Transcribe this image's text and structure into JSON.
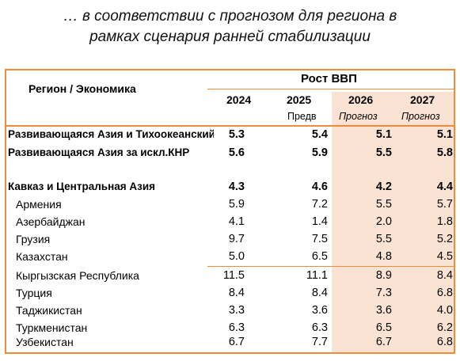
{
  "title": {
    "line1": "… в соответствии с прогнозом для региона в",
    "line2": "рамках сценария ранней стабилизации"
  },
  "table": {
    "region_header": "Регион / Экономика",
    "gdp_header": "Рост ВВП",
    "years": [
      "2024",
      "2025",
      "2026",
      "2027"
    ],
    "year_subs": [
      "",
      "Предв",
      "Прогноз",
      "Прогноз"
    ],
    "rows": [
      {
        "name": "Развивающаяся Азия и Тихоокеанский регион",
        "values": [
          "5.3",
          "5.4",
          "5.1",
          "5.1"
        ],
        "bold": true
      },
      {
        "name": "Развивающаяся Азия за искл.КНР",
        "values": [
          "5.6",
          "5.9",
          "5.5",
          "5.8"
        ],
        "bold": true
      },
      {
        "name": "Кавказ и Центральная Азия",
        "values": [
          "4.3",
          "4.6",
          "4.2",
          "4.4"
        ],
        "bold": true
      },
      {
        "name": "Армения",
        "values": [
          "5.9",
          "7.2",
          "5.5",
          "5.7"
        ],
        "bold": false
      },
      {
        "name": "Азербайджан",
        "values": [
          "4.1",
          "1.4",
          "2.0",
          "1.8"
        ],
        "bold": false
      },
      {
        "name": "Грузия",
        "values": [
          "9.7",
          "7.5",
          "5.5",
          "5.2"
        ],
        "bold": false
      },
      {
        "name": "Казахстан",
        "values": [
          "5.0",
          "6.5",
          "4.8",
          "4.5"
        ],
        "bold": false
      },
      {
        "name": "Кыргызская Республика",
        "values": [
          "11.5",
          "11.1",
          "8.9",
          "8.4"
        ],
        "bold": false
      },
      {
        "name": "Турция",
        "values": [
          "8.4",
          "8.4",
          "7.3",
          "6.8"
        ],
        "bold": false
      },
      {
        "name": "Таджикистан",
        "values": [
          "3.3",
          "3.6",
          "3.6",
          "4.0"
        ],
        "bold": false
      },
      {
        "name": "Туркменистан",
        "values": [
          "6.3",
          "6.3",
          "6.5",
          "6.2"
        ],
        "bold": false
      },
      {
        "name": "Узбекистан",
        "values": [
          "6.7",
          "7.7",
          "6.7",
          "6.8"
        ],
        "bold": false
      }
    ]
  },
  "colors": {
    "border": "#ee8c3a",
    "forecast_shade": "#fbe3d3"
  }
}
